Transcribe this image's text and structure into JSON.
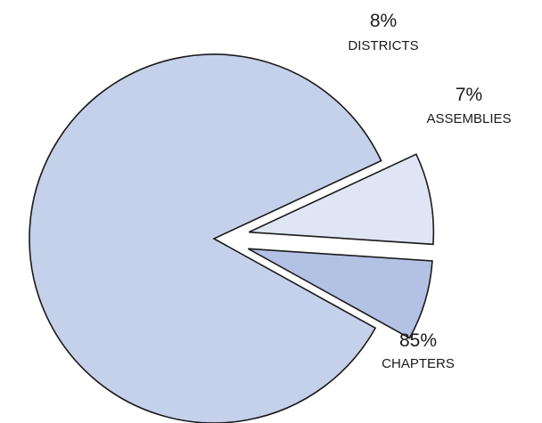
{
  "chart_data": {
    "type": "pie",
    "slices": [
      {
        "label": "CHAPTERS",
        "value": 85,
        "value_label": "85%",
        "color": "#c5d0ea",
        "exploded": false
      },
      {
        "label": "DISTRICTS",
        "value": 8,
        "value_label": "8%",
        "color": "#dfe5f4",
        "exploded": true
      },
      {
        "label": "ASSEMBLIES",
        "value": 7,
        "value_label": "7%",
        "color": "#b3c1e5",
        "exploded": true
      }
    ]
  }
}
